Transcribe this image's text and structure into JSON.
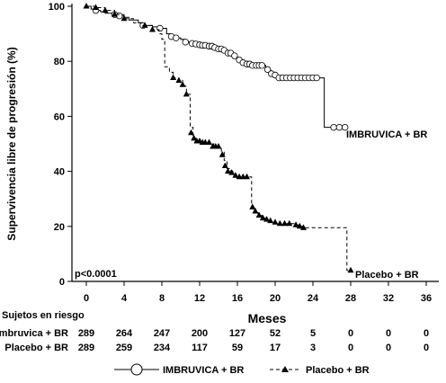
{
  "chart_data": {
    "type": "line",
    "ylabel": "Supervivencia libre de progresión (%)",
    "xlabel": "Meses",
    "x_ticks": [
      0,
      4,
      8,
      12,
      16,
      20,
      24,
      28,
      32,
      36
    ],
    "y_ticks": [
      0,
      20,
      40,
      60,
      80,
      100
    ],
    "xlim": [
      -1,
      37
    ],
    "ylim": [
      -1,
      101
    ],
    "annotation": "p<0.0001",
    "series": [
      {
        "name": "IMBRUVICA + BR",
        "line_style": "solid",
        "marker": "circle",
        "color": "#000000",
        "points": [
          [
            0,
            100
          ],
          [
            0.5,
            99
          ],
          [
            1,
            98.5
          ],
          [
            1.5,
            98
          ],
          [
            2,
            97.5
          ],
          [
            3,
            97
          ],
          [
            3.5,
            96.5
          ],
          [
            4,
            96
          ],
          [
            4.5,
            95
          ],
          [
            5.5,
            94
          ],
          [
            6,
            93
          ],
          [
            7,
            92.5
          ],
          [
            8,
            92
          ],
          [
            8.5,
            90
          ],
          [
            9,
            89
          ],
          [
            9.5,
            88.5
          ],
          [
            10,
            88
          ],
          [
            10.5,
            87
          ],
          [
            11,
            86.5
          ],
          [
            11.5,
            86.3
          ],
          [
            12,
            86
          ],
          [
            12.5,
            85.8
          ],
          [
            13,
            85.5
          ],
          [
            13.5,
            85
          ],
          [
            14,
            84.5
          ],
          [
            14.5,
            84
          ],
          [
            15,
            83
          ],
          [
            15.5,
            82
          ],
          [
            16,
            80.5
          ],
          [
            16.5,
            79.5
          ],
          [
            17,
            79
          ],
          [
            17.5,
            78.5
          ],
          [
            18,
            78.5
          ],
          [
            18.5,
            78.5
          ],
          [
            19,
            77
          ],
          [
            19.5,
            75.5
          ],
          [
            20,
            75
          ],
          [
            20.5,
            74
          ],
          [
            21,
            74
          ],
          [
            21.5,
            74
          ],
          [
            22,
            74
          ],
          [
            22.5,
            74
          ],
          [
            23,
            74
          ],
          [
            23.5,
            74
          ],
          [
            24,
            74
          ],
          [
            24.5,
            74
          ],
          [
            25.2,
            74
          ],
          [
            25.2,
            56
          ],
          [
            26,
            56
          ],
          [
            26.5,
            56
          ],
          [
            27,
            56
          ],
          [
            27.5,
            56
          ]
        ],
        "censor_points": [
          [
            1,
            98.5
          ],
          [
            3,
            97
          ],
          [
            3.5,
            96.5
          ],
          [
            6,
            93
          ],
          [
            7.8,
            92
          ],
          [
            9,
            89
          ],
          [
            9.5,
            88.5
          ],
          [
            10.5,
            87
          ],
          [
            11.2,
            86.5
          ],
          [
            11.6,
            86.3
          ],
          [
            12,
            86
          ],
          [
            12.3,
            85.8
          ],
          [
            12.6,
            85.8
          ],
          [
            13,
            85.5
          ],
          [
            13.3,
            85.5
          ],
          [
            13.6,
            85
          ],
          [
            14,
            84.5
          ],
          [
            14.3,
            84.5
          ],
          [
            14.6,
            84
          ],
          [
            15,
            83
          ],
          [
            15.3,
            83
          ],
          [
            15.7,
            82
          ],
          [
            16.2,
            80.5
          ],
          [
            16.6,
            79.5
          ],
          [
            17,
            79
          ],
          [
            17.3,
            79
          ],
          [
            17.6,
            78.5
          ],
          [
            18,
            78.5
          ],
          [
            18.3,
            78.5
          ],
          [
            18.6,
            78.5
          ],
          [
            19.2,
            77
          ],
          [
            19.6,
            75.5
          ],
          [
            20,
            75
          ],
          [
            20.4,
            74
          ],
          [
            20.8,
            74
          ],
          [
            21.2,
            74
          ],
          [
            21.6,
            74
          ],
          [
            22,
            74
          ],
          [
            22.4,
            74
          ],
          [
            22.8,
            74
          ],
          [
            23.2,
            74
          ],
          [
            23.6,
            74
          ],
          [
            24,
            74
          ],
          [
            24.4,
            74
          ],
          [
            26.2,
            56
          ],
          [
            26.8,
            56
          ],
          [
            27.4,
            56
          ]
        ]
      },
      {
        "name": "Placebo + BR",
        "line_style": "dashed",
        "marker": "triangle",
        "color": "#000000",
        "points": [
          [
            0,
            100
          ],
          [
            1,
            99.5
          ],
          [
            2,
            98.5
          ],
          [
            3,
            97
          ],
          [
            4,
            95.5
          ],
          [
            5,
            94
          ],
          [
            6,
            93
          ],
          [
            7,
            91.5
          ],
          [
            7.7,
            90
          ],
          [
            8,
            88
          ],
          [
            8.3,
            78
          ],
          [
            8.8,
            76
          ],
          [
            9.2,
            74
          ],
          [
            9.8,
            73
          ],
          [
            10.2,
            71
          ],
          [
            10.6,
            68
          ],
          [
            11,
            56
          ],
          [
            11.3,
            52
          ],
          [
            11.6,
            51
          ],
          [
            12,
            50.5
          ],
          [
            12.5,
            50
          ],
          [
            13,
            50
          ],
          [
            13.5,
            49
          ],
          [
            14,
            49
          ],
          [
            14.3,
            47
          ],
          [
            14.6,
            44
          ],
          [
            14.9,
            41
          ],
          [
            15.3,
            40
          ],
          [
            15.6,
            39
          ],
          [
            16,
            38
          ],
          [
            16.4,
            38
          ],
          [
            16.8,
            38
          ],
          [
            17.2,
            38
          ],
          [
            17.5,
            27
          ],
          [
            17.8,
            25
          ],
          [
            18.2,
            24
          ],
          [
            18.6,
            23
          ],
          [
            19,
            22.5
          ],
          [
            19.5,
            22
          ],
          [
            20,
            21.5
          ],
          [
            20.5,
            21
          ],
          [
            21,
            21
          ],
          [
            21.5,
            21
          ],
          [
            22,
            20.5
          ],
          [
            22.5,
            20
          ],
          [
            23,
            19.5
          ],
          [
            23.5,
            19.5
          ],
          [
            24,
            19.5
          ],
          [
            24.5,
            19.5
          ],
          [
            25,
            19.5
          ],
          [
            26,
            19.5
          ],
          [
            27,
            19.5
          ],
          [
            27.6,
            19.5
          ],
          [
            27.6,
            4
          ],
          [
            28,
            4
          ]
        ],
        "censor_points": [
          [
            0,
            100
          ],
          [
            1,
            99.5
          ],
          [
            2,
            98.5
          ],
          [
            3,
            97
          ],
          [
            4,
            95.5
          ],
          [
            6.2,
            93
          ],
          [
            7,
            91.5
          ],
          [
            9.2,
            74
          ],
          [
            9.8,
            73
          ],
          [
            10.2,
            71.5
          ],
          [
            10.6,
            68
          ],
          [
            11.1,
            54
          ],
          [
            11.4,
            52
          ],
          [
            11.7,
            51
          ],
          [
            12,
            51
          ],
          [
            12.3,
            50.5
          ],
          [
            12.6,
            50.5
          ],
          [
            13,
            50.5
          ],
          [
            13.4,
            49
          ],
          [
            13.7,
            49
          ],
          [
            14,
            49
          ],
          [
            14.4,
            46
          ],
          [
            14.7,
            42
          ],
          [
            15,
            40
          ],
          [
            15.4,
            39.5
          ],
          [
            15.8,
            38.5
          ],
          [
            16.2,
            38
          ],
          [
            16.6,
            38
          ],
          [
            17,
            38
          ],
          [
            17.6,
            27
          ],
          [
            17.9,
            25.5
          ],
          [
            18.3,
            24
          ],
          [
            18.7,
            23
          ],
          [
            19.1,
            22.5
          ],
          [
            19.5,
            22
          ],
          [
            20,
            21.5
          ],
          [
            20.5,
            21
          ],
          [
            21,
            21
          ],
          [
            21.5,
            21
          ],
          [
            22.2,
            20.5
          ],
          [
            22.6,
            20
          ],
          [
            23,
            19.5
          ],
          [
            28,
            4
          ]
        ]
      }
    ],
    "series_labels": [
      "IMBRUVICA + BR",
      "Placebo + BR"
    ],
    "risk_table": {
      "title": "Sujetos en riesgo",
      "rows": [
        {
          "label": "Imbruvica + BR",
          "values": [
            "289",
            "264",
            "247",
            "200",
            "127",
            "52",
            "5",
            "0",
            "0",
            "0"
          ]
        },
        {
          "label": "Placebo + BR",
          "values": [
            "289",
            "259",
            "234",
            "117",
            "59",
            "17",
            "3",
            "0",
            "0",
            "0"
          ]
        }
      ]
    },
    "legend": {
      "placement": "bottom",
      "entries": [
        "IMBRUVICA + BR",
        "Placebo + BR"
      ]
    }
  }
}
